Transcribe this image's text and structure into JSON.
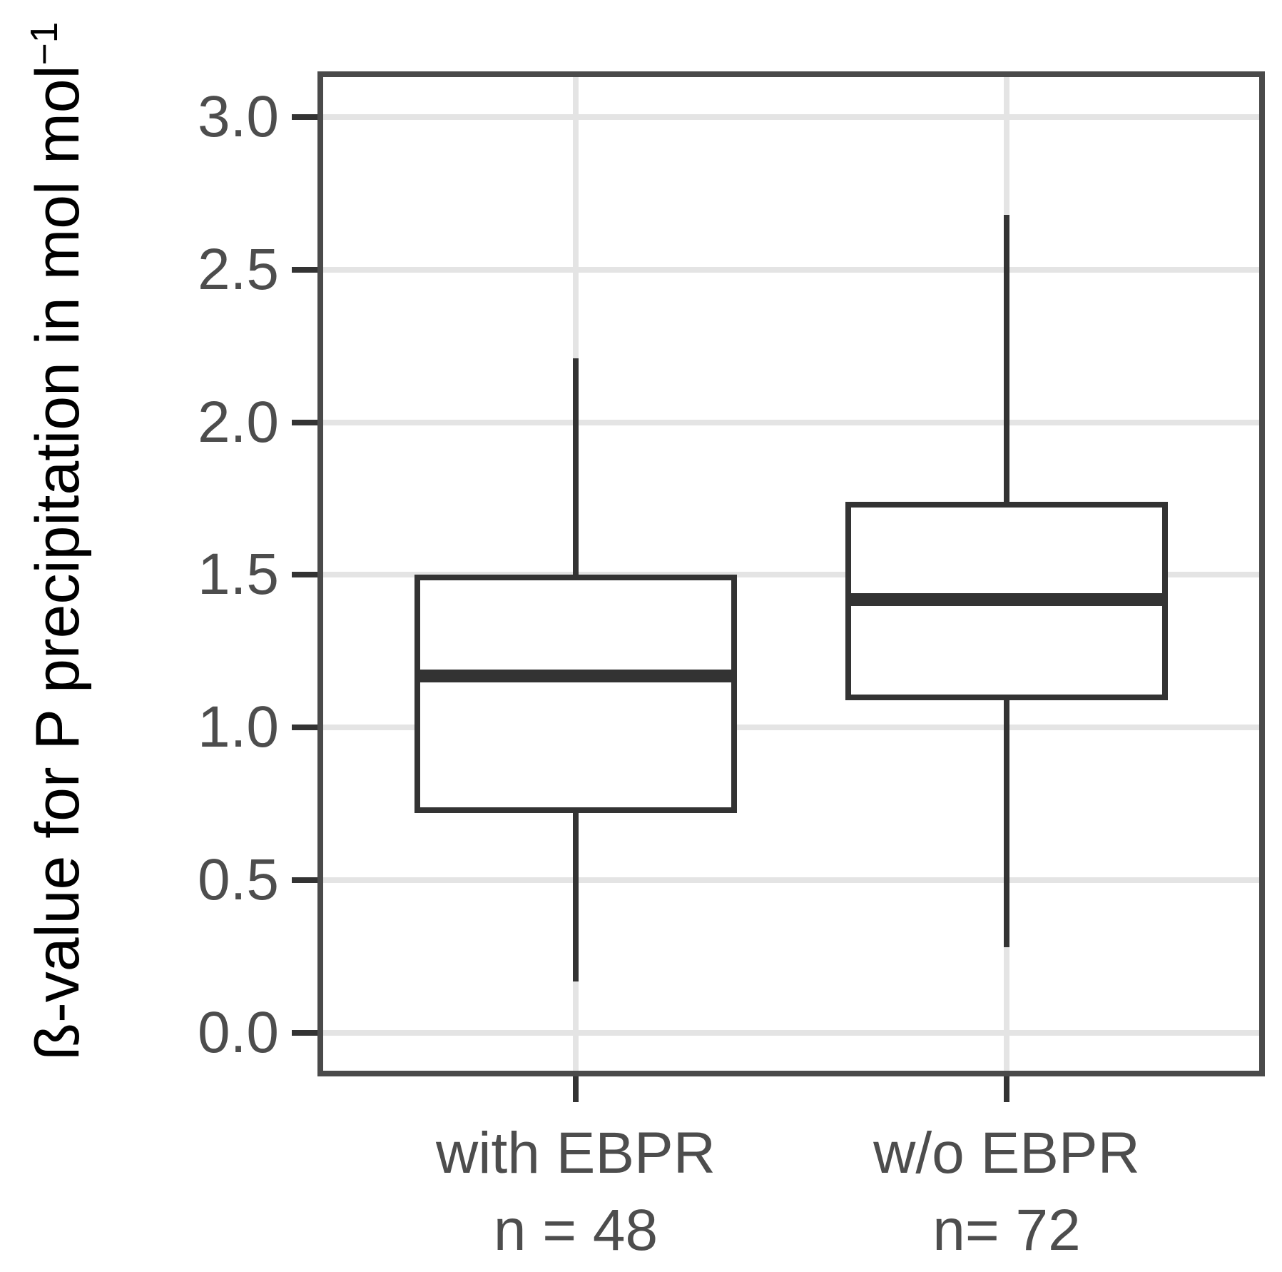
{
  "chart_data": {
    "type": "boxplot",
    "title": "",
    "xlabel": "",
    "ylabel_main": "ß-value for P precipitation in mol mol",
    "ylabel_sup": "−1",
    "ylabel_full": "ß-value for P precipitation in mol mol⁻¹",
    "ylim": [
      -0.142,
      3.149
    ],
    "y_ticks": [
      {
        "value": 3.0,
        "label": "3.0"
      },
      {
        "value": 2.5,
        "label": "2.5"
      },
      {
        "value": 2.0,
        "label": "2.0"
      },
      {
        "value": 1.5,
        "label": "1.5"
      },
      {
        "value": 1.0,
        "label": "1.0"
      },
      {
        "value": 0.5,
        "label": "0.5"
      },
      {
        "value": 0.0,
        "label": "0.0"
      }
    ],
    "grid": "major gridlines only, horizontal at each y tick and vertical at each category; no legend",
    "legend": null,
    "categories": [
      {
        "label": "with EBPR",
        "sublabel": "n = 48",
        "n": 48
      },
      {
        "label": "w/o EBPR",
        "sublabel": "n= 72",
        "n": 72
      }
    ],
    "boxes": [
      {
        "category": "with EBPR",
        "whisker_low": 0.17,
        "q1": 0.72,
        "median": 1.17,
        "q3": 1.5,
        "whisker_high": 2.21,
        "outliers": []
      },
      {
        "category": "w/o EBPR",
        "whisker_low": 0.28,
        "q1": 1.09,
        "median": 1.42,
        "q3": 1.74,
        "whisker_high": 2.68,
        "outliers": []
      }
    ],
    "colors": {
      "background": "#ffffff",
      "panel_fill": "#ffffff",
      "panel_border": "#4a4a4a",
      "gridline": "#e4e4e4",
      "box_stroke": "#333333",
      "box_fill": "#ffffff",
      "tick_label": "#4d4d4d",
      "axis_title": "#000000"
    }
  }
}
